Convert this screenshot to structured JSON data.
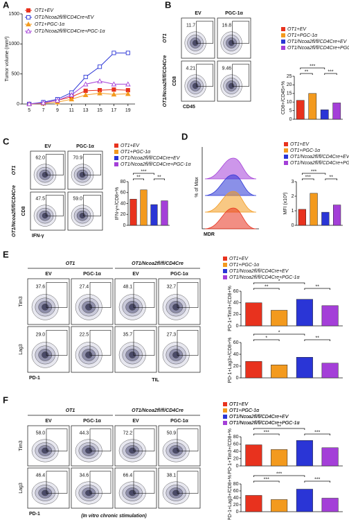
{
  "letters": [
    "A",
    "B",
    "C",
    "D",
    "E",
    "F"
  ],
  "chart_data": [
    {
      "type": "line",
      "ylabel": "Tumor volume (mm³)",
      "x": [
        5,
        7,
        9,
        11,
        13,
        15,
        17,
        19
      ],
      "xlim": [
        4,
        20
      ],
      "xticks": [
        5,
        7,
        9,
        11,
        13,
        15,
        17,
        19
      ],
      "ylim": [
        0,
        1500
      ],
      "yticks": [
        0,
        500,
        1000,
        1500
      ],
      "series": [
        {
          "name": "OT1+EV",
          "color": "#e8321e",
          "marker": "square",
          "filled": true,
          "values": [
            0,
            20,
            60,
            120,
            220,
            230,
            240,
            230
          ]
        },
        {
          "name": "OT1/Ncoa2fl/fl/CD4Cre+EV",
          "color": "#2a35d6",
          "marker": "square",
          "filled": false,
          "values": [
            0,
            30,
            80,
            190,
            450,
            620,
            850,
            850
          ]
        },
        {
          "name": "OT1+PGC-1α",
          "color": "#f39a1e",
          "marker": "triangle",
          "filled": true,
          "values": [
            0,
            10,
            30,
            80,
            150,
            180,
            160,
            170
          ]
        },
        {
          "name": "OT1/Ncoa2fl/fl/CD4Cre+PGC-1α",
          "color": "#a43fd8",
          "marker": "triangle",
          "filled": false,
          "values": [
            0,
            20,
            60,
            150,
            330,
            380,
            330,
            330
          ]
        }
      ]
    },
    {
      "type": "bar",
      "ylabel": "CD8+/CD45+%",
      "categories": [
        "OT1+EV",
        "OT1+PGC-1α",
        "OT1/Ncoa2fl/fl/CD4Cre+EV",
        "OT1/Ncoa2fl/fl/CD4Cre+PGC-1α"
      ],
      "colors": [
        "#e8321e",
        "#f39a1e",
        "#2a35d6",
        "#a43fd8"
      ],
      "values": [
        11,
        15,
        5.5,
        9.5
      ],
      "ylim": [
        0,
        25
      ],
      "yticks": [
        0,
        5,
        10,
        15,
        20,
        25
      ],
      "annotations": [
        "***",
        "**",
        "***"
      ]
    },
    {
      "type": "bar",
      "ylabel": "IFN-γ+/CD8+%",
      "categories": [
        "OT1+EV",
        "OT1+PGC-1α",
        "OT1/Ncoa2fl/fl/CD4Cre+EV",
        "OT1/Ncoa2fl/fl/CD4Cre+PGC-1α"
      ],
      "colors": [
        "#e8321e",
        "#f39a1e",
        "#2a35d6",
        "#a43fd8"
      ],
      "values": [
        48,
        65,
        38,
        45
      ],
      "ylim": [
        0,
        80
      ],
      "yticks": [
        0,
        20,
        40,
        60,
        80
      ],
      "annotations": [
        "***",
        "**",
        "**"
      ]
    },
    {
      "type": "bar",
      "ylabel": "MFI (x10³)",
      "categories": [
        "OT1+EV",
        "OT1+PGC-1α",
        "OT1/Ncoa2fl/fl/CD4Cre+EV",
        "OT1/Ncoa2fl/fl/CD4Cre+PGC-1α"
      ],
      "colors": [
        "#e8321e",
        "#f39a1e",
        "#2a35d6",
        "#a43fd8"
      ],
      "values": [
        1.1,
        2.2,
        0.9,
        1.4
      ],
      "ylim": [
        0,
        3
      ],
      "yticks": [
        0,
        1,
        2,
        3
      ],
      "annotations": [
        "***",
        "***",
        "**"
      ]
    },
    {
      "type": "bar",
      "ylabel": "PD-1+Tim3+/CD8+%",
      "categories": [
        "OT1+EV",
        "OT1+PGC-1α",
        "OT1/Ncoa2fl/fl/CD4Cre+EV",
        "OT1/Ncoa2fl/fl/CD4Cre+PGC-1α"
      ],
      "colors": [
        "#e8321e",
        "#f39a1e",
        "#2a35d6",
        "#a43fd8"
      ],
      "values": [
        40,
        27,
        46,
        35
      ],
      "ylim": [
        0,
        60
      ],
      "yticks": [
        0,
        20,
        40,
        60
      ],
      "annotations": [
        "*",
        "**",
        "**"
      ]
    },
    {
      "type": "bar",
      "ylabel": "PD-1+Lag3+/CD8+%",
      "categories": [
        "OT1+EV",
        "OT1+PGC-1α",
        "OT1/Ncoa2fl/fl/CD4Cre+EV",
        "OT1/Ncoa2fl/fl/CD4Cre+PGC-1α"
      ],
      "colors": [
        "#e8321e",
        "#f39a1e",
        "#2a35d6",
        "#a43fd8"
      ],
      "values": [
        28,
        22,
        35,
        25
      ],
      "ylim": [
        0,
        60
      ],
      "yticks": [
        0,
        20,
        40,
        60
      ],
      "annotations": [
        "*",
        "*",
        "**"
      ]
    },
    {
      "type": "bar",
      "ylabel": "PD-1+Tim3+/CD8+%",
      "categories": [
        "OT1+EV",
        "OT1+PGC-1α",
        "OT1/Ncoa2fl/fl/CD4Cre+EV",
        "OT1/Ncoa2fl/fl/CD4Cre+PGC-1α"
      ],
      "colors": [
        "#e8321e",
        "#f39a1e",
        "#2a35d6",
        "#a43fd8"
      ],
      "values": [
        58,
        45,
        70,
        50
      ],
      "ylim": [
        0,
        80
      ],
      "yticks": [
        0,
        20,
        40,
        60,
        80
      ],
      "annotations": [
        "**",
        "***",
        "***"
      ]
    },
    {
      "type": "bar",
      "ylabel": "PD-1+Lag3+/CD8+%",
      "categories": [
        "OT1+EV",
        "OT1+PGC-1α",
        "OT1/Ncoa2fl/fl/CD4Cre+EV",
        "OT1/Ncoa2fl/fl/CD4Cre+PGC-1α"
      ],
      "colors": [
        "#e8321e",
        "#f39a1e",
        "#2a35d6",
        "#a43fd8"
      ],
      "values": [
        47,
        35,
        65,
        39
      ],
      "ylim": [
        0,
        80
      ],
      "yticks": [
        0,
        20,
        40,
        60,
        80
      ],
      "annotations": [
        "***",
        "***",
        "***"
      ]
    }
  ],
  "flow_panels": [
    {
      "columns": [
        "EV",
        "PGC-1α"
      ],
      "rows": [
        "OT1",
        "OT1/Ncoa2fl/fl/CD4Cre"
      ],
      "y_label": "CD8",
      "x_label": "CD45",
      "gates": [
        [
          "11.7",
          "16.8"
        ],
        [
          "4.21",
          "9.46"
        ]
      ]
    },
    {
      "columns": [
        "EV",
        "PGC-1α"
      ],
      "rows": [
        "OT1",
        "OT1/Ncoa2fl/fl/CD4Cre"
      ],
      "y_label": "CD8",
      "x_label": "IFN-γ",
      "gates": [
        [
          "62.0",
          "70.9"
        ],
        [
          "47.5",
          "59.0"
        ]
      ]
    },
    {
      "headers": [
        "OT1",
        "OT1/Ncoa2fl/fl/CD4Cre"
      ],
      "columns": [
        "EV",
        "PGC-1α",
        "EV",
        "PGC-1α"
      ],
      "rows": [
        "Tim3",
        "Lag3"
      ],
      "x_label": "PD-1",
      "caption": "TIL",
      "gates": [
        [
          "37.6",
          "27.4",
          "48.1",
          "32.7"
        ],
        [
          "29.0",
          "22.5",
          "35.7",
          "27.3"
        ]
      ]
    },
    {
      "headers": [
        "OT1",
        "OT1/Ncoa2fl/fl/CD4Cre"
      ],
      "columns": [
        "EV",
        "PGC-1α",
        "EV",
        "PGC-1α"
      ],
      "rows": [
        "Tim3",
        "Lag3"
      ],
      "x_label": "PD-1",
      "caption": "(In vitro chronic stimulation)",
      "gates": [
        [
          "58.0",
          "44.3",
          "72.2",
          "50.9"
        ],
        [
          "46.4",
          "34.6",
          "66.4",
          "38.1"
        ]
      ]
    }
  ],
  "histogram": {
    "y_label": "% of Max",
    "x_label": "MDR"
  }
}
